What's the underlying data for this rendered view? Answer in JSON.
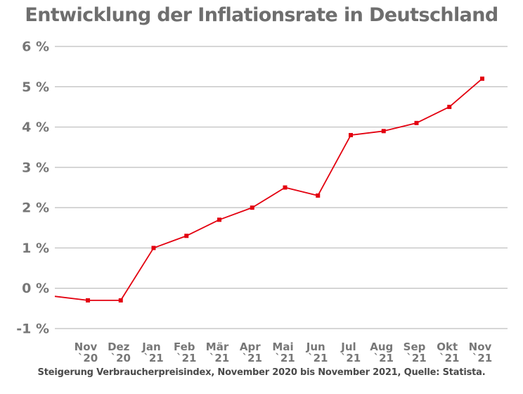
{
  "chart_data": {
    "type": "line",
    "title": "Entwicklung der Inflationsrate in Deutschland",
    "caption": "Steigerung Verbraucherpreisindex, November 2020 bis November 2021, Quelle: Statista.",
    "xlabel": "",
    "ylabel": "",
    "ylim": [
      -1,
      6
    ],
    "y_ticks": [
      {
        "value": -1,
        "label": "-1 %"
      },
      {
        "value": 0,
        "label": "0 %"
      },
      {
        "value": 1,
        "label": "1 %"
      },
      {
        "value": 2,
        "label": "2 %"
      },
      {
        "value": 3,
        "label": "3 %"
      },
      {
        "value": 4,
        "label": "4 %"
      },
      {
        "value": 5,
        "label": "5 %"
      },
      {
        "value": 6,
        "label": "6 %"
      }
    ],
    "categories": [
      {
        "month": "Nov",
        "year": "`20"
      },
      {
        "month": "Dez",
        "year": "`20"
      },
      {
        "month": "Jan",
        "year": "`21"
      },
      {
        "month": "Feb",
        "year": "`21"
      },
      {
        "month": "Mär",
        "year": "`21"
      },
      {
        "month": "Apr",
        "year": "`21"
      },
      {
        "month": "Mai",
        "year": "`21"
      },
      {
        "month": "Jun",
        "year": "`21"
      },
      {
        "month": "Jul",
        "year": "`21"
      },
      {
        "month": "Aug",
        "year": "`21"
      },
      {
        "month": "Sep",
        "year": "`21"
      },
      {
        "month": "Okt",
        "year": "`21"
      },
      {
        "month": "Nov",
        "year": "`21"
      }
    ],
    "series": [
      {
        "values": [
          -0.3,
          -0.3,
          1.0,
          1.3,
          1.7,
          2.0,
          2.5,
          2.3,
          3.8,
          3.9,
          4.1,
          4.5,
          5.2
        ],
        "start_value": -0.2,
        "color": "#e3000f"
      }
    ],
    "grid": true,
    "legend": "none",
    "colors": {
      "title": "#6e6e6e",
      "axis_labels": "#777777",
      "gridline": "#bdbdbd",
      "line": "#e3000f"
    }
  }
}
